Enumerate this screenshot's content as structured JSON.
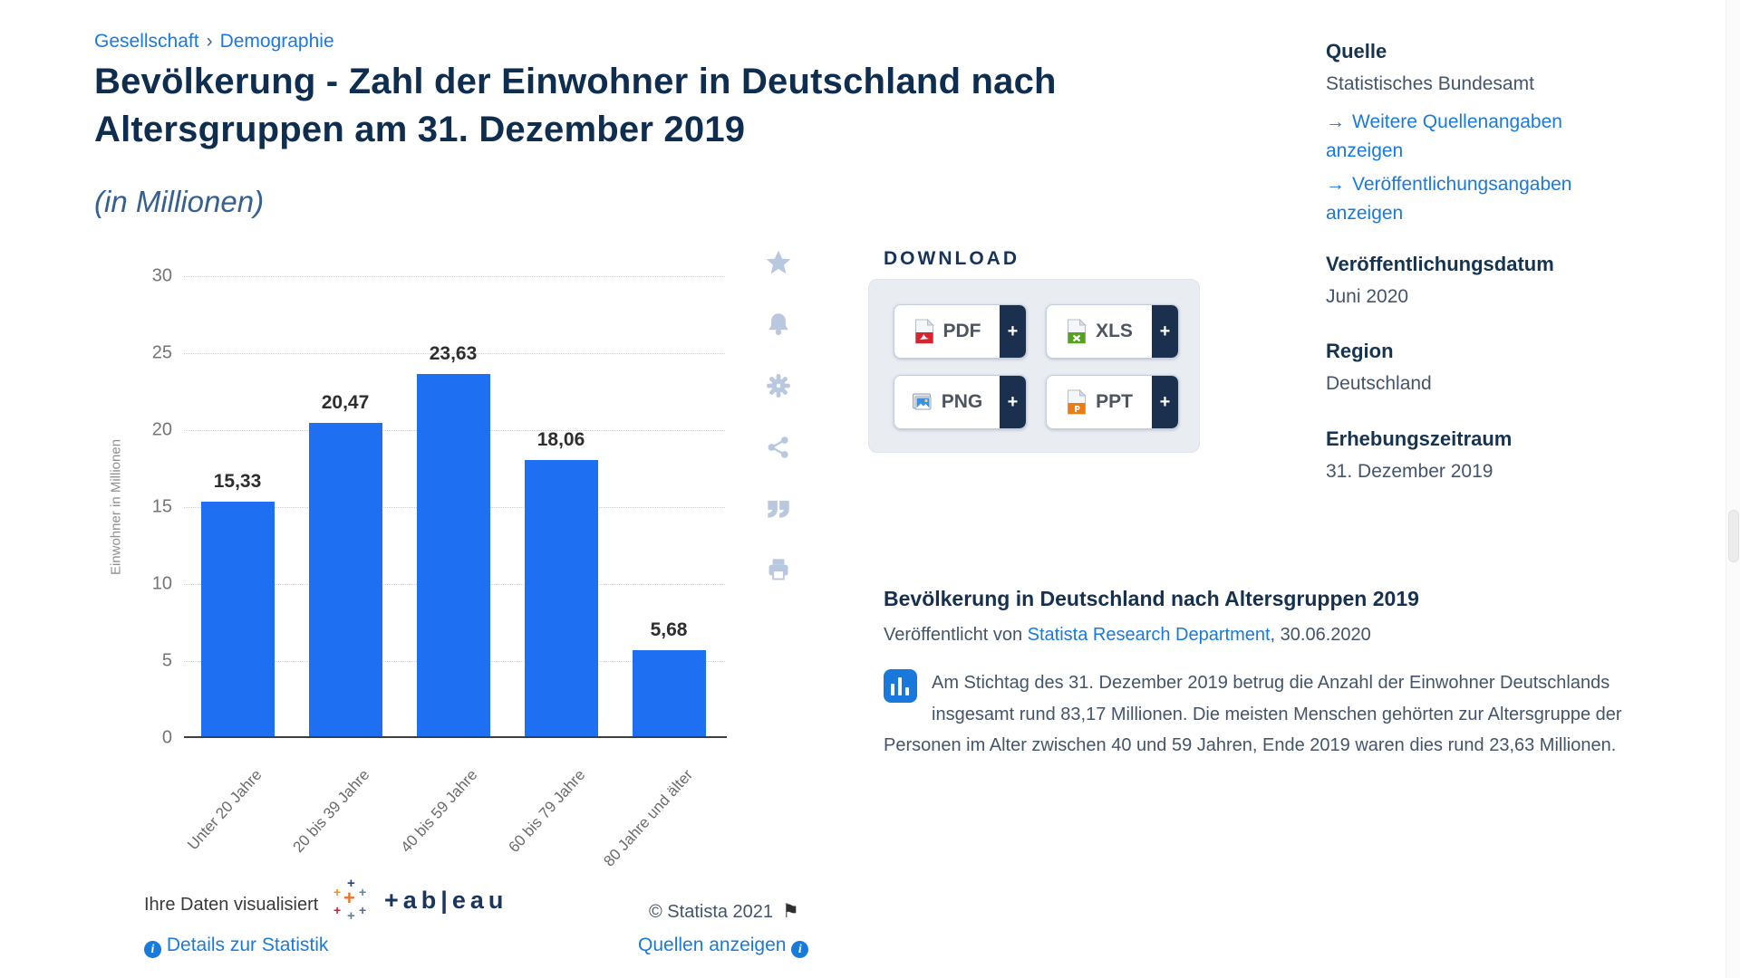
{
  "breadcrumb": {
    "items": [
      "Gesellschaft",
      "Demographie"
    ],
    "separator": "›"
  },
  "header": {
    "title": "Bevölkerung - Zahl der Einwohner in Deutschland nach Altersgruppen am 31. Dezember 2019",
    "subtitle": "(in Millionen)"
  },
  "chart_data": {
    "type": "bar",
    "categories": [
      "Unter 20 Jahre",
      "20 bis 39 Jahre",
      "40 bis 59 Jahre",
      "60 bis 79 Jahre",
      "80 Jahre und älter"
    ],
    "values": [
      15.33,
      20.47,
      23.63,
      18.06,
      5.68
    ],
    "value_labels": [
      "15,33",
      "20,47",
      "23,63",
      "18,06",
      "5,68"
    ],
    "title": "Bevölkerung - Zahl der Einwohner in Deutschland nach Altersgruppen am 31. Dezember 2019 (in Millionen)",
    "xlabel": "",
    "ylabel": "Einwohner in Millionen",
    "ylim": [
      0,
      30
    ],
    "yticks": [
      0,
      5,
      10,
      15,
      20,
      25,
      30
    ],
    "grid": "horizontal-dotted",
    "legend": "none",
    "bar_color": "#1f6ff2"
  },
  "action_icons": [
    "favorite",
    "alert",
    "settings",
    "share",
    "cite",
    "print"
  ],
  "download": {
    "heading": "DOWNLOAD",
    "plus": "+",
    "buttons": [
      {
        "id": "pdf",
        "label": "PDF"
      },
      {
        "id": "xls",
        "label": "XLS"
      },
      {
        "id": "png",
        "label": "PNG"
      },
      {
        "id": "ppt",
        "label": "PPT"
      }
    ]
  },
  "sidebar": {
    "arrow": "→",
    "source_label": "Quelle",
    "source_value": "Statistisches Bundesamt",
    "more_sources_link": "Weitere Quellenangaben anzeigen",
    "publication_link": "Veröffentlichungsangaben anzeigen",
    "pubdate_label": "Veröffentlichungsdatum",
    "pubdate_value": "Juni 2020",
    "region_label": "Region",
    "region_value": "Deutschland",
    "period_label": "Erhebungszeitraum",
    "period_value": "31. Dezember 2019"
  },
  "description": {
    "heading": "Bevölkerung in Deutschland nach Altersgruppen 2019",
    "byline_prefix": "Veröffentlicht von ",
    "byline_link": "Statista Research Department",
    "byline_suffix": ", 30.06.2020",
    "body": "Am Stichtag des 31. Dezember 2019 betrug die Anzahl der Einwohner Deutschlands insgesamt rund 83,17 Millionen. Die meisten Menschen gehörten zur Altersgruppe der Personen im Alter zwischen 40 und 59 Jahren, Ende 2019 waren dies rund 23,63 Millionen."
  },
  "footer": {
    "visualized_by": "Ihre Daten visualisiert",
    "tableau_wordmark": "+ab|eau",
    "copyright": "© Statista 2021",
    "details_link": "Details zur Statistik",
    "sources_link": "Quellen anzeigen"
  },
  "colors": {
    "bar_blue": "#1f6ff2",
    "link_blue": "#1a7ad9",
    "heading_navy": "#0e2d4f",
    "panel_navy": "#1b2f4e",
    "icon_steel": "#b9c8de"
  }
}
